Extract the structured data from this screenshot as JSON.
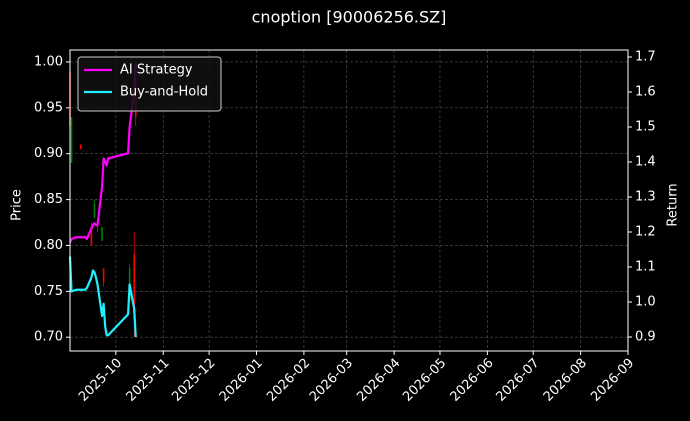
{
  "chart_data": {
    "type": "candlestick",
    "title": "cnoption [90006256.SZ]",
    "ylabel": "Price",
    "y2label": "Return",
    "xlim": [
      "2025-09-01",
      "2026-09-01"
    ],
    "xticks": [
      {
        "value": "2025-10-01",
        "label": "2025-10"
      },
      {
        "value": "2025-11-01",
        "label": "2025-11"
      },
      {
        "value": "2025-12-01",
        "label": "2025-12"
      },
      {
        "value": "2026-01-01",
        "label": "2026-01"
      },
      {
        "value": "2026-02-01",
        "label": "2026-02"
      },
      {
        "value": "2026-03-01",
        "label": "2026-03"
      },
      {
        "value": "2026-04-01",
        "label": "2026-04"
      },
      {
        "value": "2026-05-01",
        "label": "2026-05"
      },
      {
        "value": "2026-06-01",
        "label": "2026-06"
      },
      {
        "value": "2026-07-01",
        "label": "2026-07"
      },
      {
        "value": "2026-08-01",
        "label": "2026-08"
      },
      {
        "value": "2026-09-01",
        "label": "2026-09"
      }
    ],
    "ylim": [
      0.685,
      1.013
    ],
    "yticks": [
      {
        "value": 0.7,
        "label": "0.70"
      },
      0.75,
      {
        "value": 0.8,
        "label": "0.80"
      },
      0.85,
      {
        "value": 0.9,
        "label": "0.90"
      },
      0.95,
      {
        "value": 1.0,
        "label": "1.00"
      }
    ],
    "y2lim": [
      0.86,
      1.72
    ],
    "y2ticks": [
      0.9,
      {
        "value": 1.0,
        "label": "1.0"
      },
      1.1,
      1.2,
      1.3,
      1.4,
      1.5,
      1.6,
      1.7
    ],
    "grid": true,
    "legend": "upper left",
    "up_color": "#008000",
    "down_color": "#ff0000",
    "candles": {
      "x": [
        "2025-09-01",
        "2025-09-02",
        "2025-09-08",
        "2025-09-15",
        "2025-09-17",
        "2025-09-19",
        "2025-09-22",
        "2025-09-23",
        "2025-10-10",
        "2025-10-13",
        "2025-10-14"
      ],
      "open": [
        0.99,
        0.89,
        0.91,
        0.82,
        0.83,
        0.825,
        0.805,
        0.775,
        0.74,
        0.79,
        0.98
      ],
      "high": [
        1.0,
        0.94,
        0.91,
        0.825,
        0.85,
        0.83,
        0.82,
        0.775,
        0.78,
        0.815,
        1.0
      ],
      "low": [
        0.88,
        0.89,
        0.905,
        0.8,
        0.83,
        0.815,
        0.805,
        0.755,
        0.74,
        0.7,
        0.93
      ],
      "close": [
        0.93,
        0.94,
        0.905,
        0.8,
        0.845,
        0.82,
        0.82,
        0.76,
        0.775,
        0.72,
        0.94
      ]
    },
    "x": [
      "2025-09-01",
      "2025-09-02",
      "2025-09-05",
      "2025-09-08",
      "2025-09-11",
      "2025-09-12",
      "2025-09-15",
      "2025-09-16",
      "2025-09-17",
      "2025-09-18",
      "2025-09-19",
      "2025-09-22",
      "2025-09-23",
      "2025-09-24",
      "2025-09-25",
      "2025-09-26",
      "2025-10-09",
      "2025-10-10",
      "2025-10-13",
      "2025-10-14"
    ],
    "series": [
      {
        "name": "AI Strategy",
        "color": "#ff00ff",
        "axis": "y2",
        "values": [
          1.17,
          1.18,
          1.185,
          1.185,
          1.185,
          1.18,
          1.21,
          1.22,
          1.225,
          1.22,
          1.22,
          1.33,
          1.41,
          1.4,
          1.39,
          1.41,
          1.425,
          1.5,
          1.6,
          1.68
        ]
      },
      {
        "name": "Buy-and-Hold",
        "color": "#22eeff",
        "axis": "y2",
        "values": [
          1.13,
          1.03,
          1.035,
          1.035,
          1.035,
          1.04,
          1.07,
          1.09,
          1.085,
          1.07,
          1.05,
          0.96,
          0.995,
          0.93,
          0.905,
          0.905,
          0.965,
          1.05,
          0.98,
          0.9
        ]
      }
    ]
  }
}
